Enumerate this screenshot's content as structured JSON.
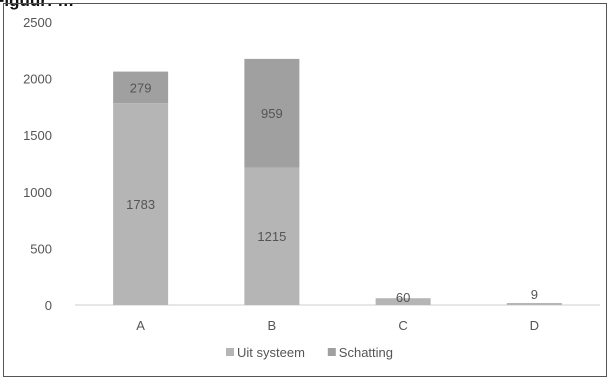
{
  "title": "Figuur: …",
  "chart_data": {
    "type": "bar",
    "stacked": true,
    "title": "",
    "xlabel": "",
    "ylabel": "",
    "categories": [
      "A",
      "B",
      "C",
      "D"
    ],
    "ylim": [
      0,
      2500
    ],
    "yticks": [
      0,
      500,
      1000,
      1500,
      2000,
      2500
    ],
    "grid": false,
    "legend_position": "bottom-center",
    "series": [
      {
        "name": "Uit systeem",
        "values": [
          1783,
          1215,
          60,
          9
        ],
        "color": "#b5b5b5"
      },
      {
        "name": "Schatting",
        "values": [
          279,
          959,
          0,
          0
        ],
        "color": "#a0a0a0"
      }
    ],
    "data_labels": [
      {
        "series": 0,
        "category": "A",
        "text": "1783"
      },
      {
        "series": 0,
        "category": "B",
        "text": "1215"
      },
      {
        "series": 0,
        "category": "C",
        "text": "60"
      },
      {
        "series": 0,
        "category": "D",
        "text": "9"
      },
      {
        "series": 1,
        "category": "A",
        "text": "279"
      },
      {
        "series": 1,
        "category": "B",
        "text": "959"
      }
    ]
  }
}
